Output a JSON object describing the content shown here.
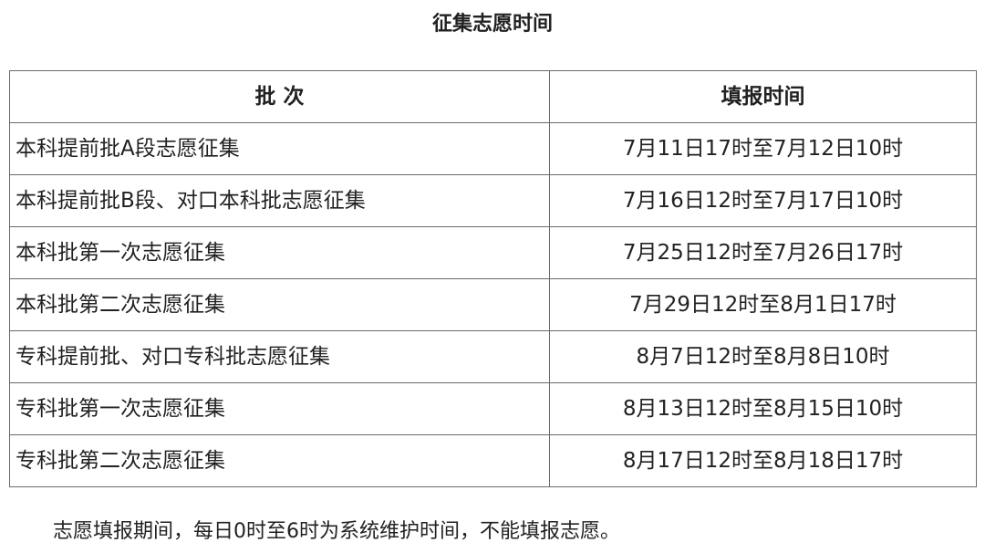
{
  "title": "征集志愿时间",
  "table": {
    "headers": [
      "批 次",
      "填报时间"
    ],
    "rows": [
      {
        "batch": "本科提前批A段志愿征集",
        "time": "7月11日17时至7月12日10时"
      },
      {
        "batch": "本科提前批B段、对口本科批志愿征集",
        "time": "7月16日12时至7月17日10时"
      },
      {
        "batch": "本科批第一次志愿征集",
        "time": "7月25日12时至7月26日17时"
      },
      {
        "batch": "本科批第二次志愿征集",
        "time": "7月29日12时至8月1日17时"
      },
      {
        "batch": "专科提前批、对口专科批志愿征集",
        "time": "8月7日12时至8月8日10时"
      },
      {
        "batch": "专科批第一次志愿征集",
        "time": "8月13日12时至8月15日10时"
      },
      {
        "batch": "专科批第二次志愿征集",
        "time": "8月17日12时至8月18日17时"
      }
    ]
  },
  "note": "志愿填报期间，每日0时至6时为系统维护时间，不能填报志愿。"
}
